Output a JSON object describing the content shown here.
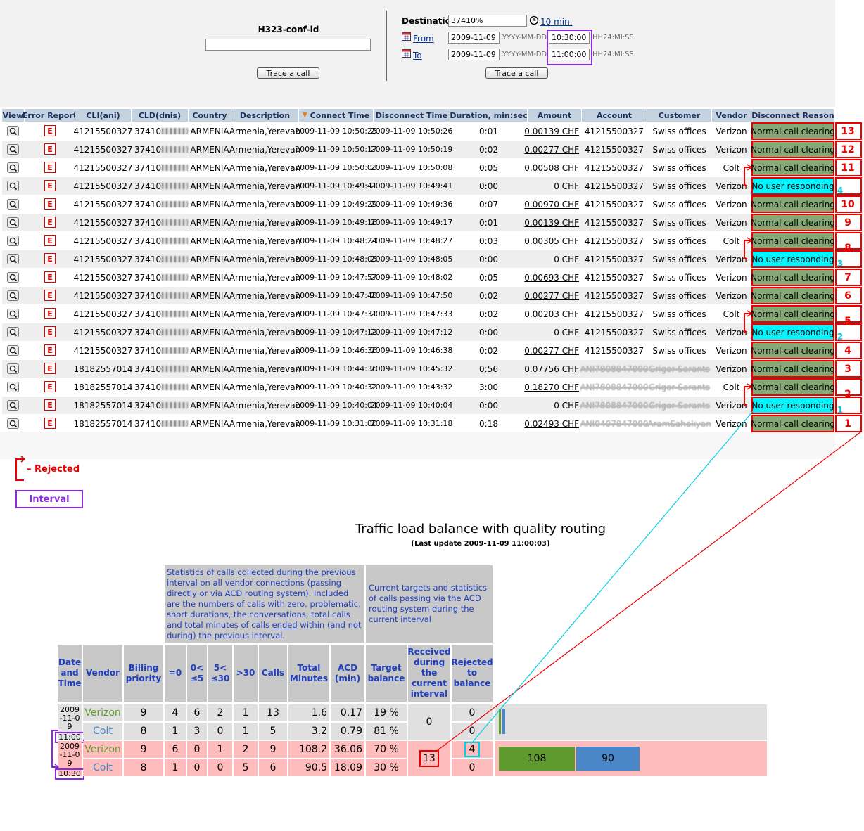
{
  "search": {
    "conf_label": "H323-conf-id",
    "button": "Trace a call",
    "destination_label": "Destination",
    "destination": "37410%",
    "interval_link": "10 min.",
    "from_label": "From",
    "from_date": "2009-11-09",
    "date_format": "YYYY-MM-DD",
    "from_time": "10:30:00",
    "time_format": "HH24:MI:SS",
    "to_label": "To",
    "to_date": "2009-11-09",
    "to_time": "11:00:00",
    "button2": "Trace a call"
  },
  "calls": {
    "headers": [
      "View",
      "Error Report",
      "CLI(ani)",
      "CLD(dnis)",
      "Country",
      "Description",
      "Connect Time",
      "Disconnect Time",
      "Duration, min:sec",
      "Amount",
      "Account",
      "Customer",
      "Vendor",
      "Disconnect Reason"
    ],
    "error_icon": "E",
    "rows": [
      {
        "cli": "41215500327",
        "cld": "37410",
        "country": "ARMENIA",
        "description": "Armenia,Yerevan",
        "connect": "2009-11-09 10:50:25",
        "disconnect": "2009-11-09 10:50:26",
        "duration": "0:01",
        "amount": "0.00139 CHF",
        "account": "41215500327",
        "customer": "Swiss offices",
        "vendor": "Verizon",
        "reason": "Normal call clearing",
        "mark": 13
      },
      {
        "cli": "41215500327",
        "cld": "37410",
        "country": "ARMENIA",
        "description": "Armenia,Yerevan",
        "connect": "2009-11-09 10:50:17",
        "disconnect": "2009-11-09 10:50:19",
        "duration": "0:02",
        "amount": "0.00277 CHF",
        "account": "41215500327",
        "customer": "Swiss offices",
        "vendor": "Verizon",
        "reason": "Normal call clearing",
        "mark": 12
      },
      {
        "cli": "41215500327",
        "cld": "37410",
        "country": "ARMENIA",
        "description": "Armenia,Yerevan",
        "connect": "2009-11-09 10:50:03",
        "disconnect": "2009-11-09 10:50:08",
        "duration": "0:05",
        "amount": "0.00508 CHF",
        "account": "41215500327",
        "customer": "Swiss offices",
        "vendor": "Colt",
        "reason": "Normal call clearing",
        "mark": 11
      },
      {
        "cli": "41215500327",
        "cld": "37410",
        "country": "ARMENIA",
        "description": "Armenia,Yerevan",
        "connect": "2009-11-09 10:49:41",
        "disconnect": "2009-11-09 10:49:41",
        "duration": "0:00",
        "amount": "0 CHF",
        "account": "41215500327",
        "customer": "Swiss offices",
        "vendor": "Verizon",
        "reason": "No user responding",
        "rejected_mark": 4
      },
      {
        "cli": "41215500327",
        "cld": "37410",
        "country": "ARMENIA",
        "description": "Armenia,Yerevan",
        "connect": "2009-11-09 10:49:29",
        "disconnect": "2009-11-09 10:49:36",
        "duration": "0:07",
        "amount": "0.00970 CHF",
        "account": "41215500327",
        "customer": "Swiss offices",
        "vendor": "Verizon",
        "reason": "Normal call clearing",
        "mark": 10
      },
      {
        "cli": "41215500327",
        "cld": "37410",
        "country": "ARMENIA",
        "description": "Armenia,Yerevan",
        "connect": "2009-11-09 10:49:16",
        "disconnect": "2009-11-09 10:49:17",
        "duration": "0:01",
        "amount": "0.00139 CHF",
        "account": "41215500327",
        "customer": "Swiss offices",
        "vendor": "Verizon",
        "reason": "Normal call clearing",
        "mark": 9
      },
      {
        "cli": "41215500327",
        "cld": "37410",
        "country": "ARMENIA",
        "description": "Armenia,Yerevan",
        "connect": "2009-11-09 10:48:24",
        "disconnect": "2009-11-09 10:48:27",
        "duration": "0:03",
        "amount": "0.00305 CHF",
        "account": "41215500327",
        "customer": "Swiss offices",
        "vendor": "Colt",
        "reason": "Normal call clearing",
        "mark": 8
      },
      {
        "cli": "41215500327",
        "cld": "37410",
        "country": "ARMENIA",
        "description": "Armenia,Yerevan",
        "connect": "2009-11-09 10:48:05",
        "disconnect": "2009-11-09 10:48:05",
        "duration": "0:00",
        "amount": "0 CHF",
        "account": "41215500327",
        "customer": "Swiss offices",
        "vendor": "Verizon",
        "reason": "No user responding",
        "rejected_mark": 3
      },
      {
        "cli": "41215500327",
        "cld": "37410",
        "country": "ARMENIA",
        "description": "Armenia,Yerevan",
        "connect": "2009-11-09 10:47:57",
        "disconnect": "2009-11-09 10:48:02",
        "duration": "0:05",
        "amount": "0.00693 CHF",
        "account": "41215500327",
        "customer": "Swiss offices",
        "vendor": "Verizon",
        "reason": "Normal call clearing",
        "mark": 7
      },
      {
        "cli": "41215500327",
        "cld": "37410",
        "country": "ARMENIA",
        "description": "Armenia,Yerevan",
        "connect": "2009-11-09 10:47:48",
        "disconnect": "2009-11-09 10:47:50",
        "duration": "0:02",
        "amount": "0.00277 CHF",
        "account": "41215500327",
        "customer": "Swiss offices",
        "vendor": "Verizon",
        "reason": "Normal call clearing",
        "mark": 6
      },
      {
        "cli": "41215500327",
        "cld": "37410",
        "country": "ARMENIA",
        "description": "Armenia,Yerevan",
        "connect": "2009-11-09 10:47:31",
        "disconnect": "2009-11-09 10:47:33",
        "duration": "0:02",
        "amount": "0.00203 CHF",
        "account": "41215500327",
        "customer": "Swiss offices",
        "vendor": "Colt",
        "reason": "Normal call clearing",
        "mark": 5
      },
      {
        "cli": "41215500327",
        "cld": "37410",
        "country": "ARMENIA",
        "description": "Armenia,Yerevan",
        "connect": "2009-11-09 10:47:12",
        "disconnect": "2009-11-09 10:47:12",
        "duration": "0:00",
        "amount": "0 CHF",
        "account": "41215500327",
        "customer": "Swiss offices",
        "vendor": "Verizon",
        "reason": "No user responding",
        "rejected_mark": 2
      },
      {
        "cli": "41215500327",
        "cld": "37410",
        "country": "ARMENIA",
        "description": "Armenia,Yerevan",
        "connect": "2009-11-09 10:46:36",
        "disconnect": "2009-11-09 10:46:38",
        "duration": "0:02",
        "amount": "0.00277 CHF",
        "account": "41215500327",
        "customer": "Swiss offices",
        "vendor": "Verizon",
        "reason": "Normal call clearing",
        "mark": 4
      },
      {
        "cli": "18182557014",
        "cld": "37410",
        "country": "ARMENIA",
        "description": "Armenia,Yerevan",
        "connect": "2009-11-09 10:44:36",
        "disconnect": "2009-11-09 10:45:32",
        "duration": "0:56",
        "amount": "0.07756 CHF",
        "account": "ANI7808847000",
        "customer": "Grigor Sarants",
        "vendor": "Verizon",
        "reason": "Normal call clearing",
        "mark": 3
      },
      {
        "cli": "18182557014",
        "cld": "37410",
        "country": "ARMENIA",
        "description": "Armenia,Yerevan",
        "connect": "2009-11-09 10:40:32",
        "disconnect": "2009-11-09 10:43:32",
        "duration": "3:00",
        "amount": "0.18270 CHF",
        "account": "ANI7808847000",
        "customer": "Grigor Sarants",
        "vendor": "Colt",
        "reason": "Normal call clearing",
        "mark": 2
      },
      {
        "cli": "18182557014",
        "cld": "37410",
        "country": "ARMENIA",
        "description": "Armenia,Yerevan",
        "connect": "2009-11-09 10:40:04",
        "disconnect": "2009-11-09 10:40:04",
        "duration": "0:00",
        "amount": "0 CHF",
        "account": "ANI7808847000",
        "customer": "Grigor Sarants",
        "vendor": "Verizon",
        "reason": "No user responding",
        "rejected_mark": 1
      },
      {
        "cli": "18182557014",
        "cld": "37410",
        "country": "ARMENIA",
        "description": "Armenia,Yerevan",
        "connect": "2009-11-09 10:31:00",
        "disconnect": "2009-11-09 10:31:18",
        "duration": "0:18",
        "amount": "0.02493 CHF",
        "account": "ANI0407847000",
        "customer": "AramSahakyan",
        "vendor": "Verizon",
        "reason": "Normal call clearing",
        "mark": 1
      }
    ]
  },
  "legend": {
    "rejected": "Rejected",
    "interval": "Interval"
  },
  "balance": {
    "title": "Traffic load balance with quality routing",
    "subtitle": "[Last update 2009-11-09 11:00:03]",
    "desc1_before": "Statistics of calls collected during the previous interval on all vendor connections (passing directly or via ACD routing system). Included are the numbers of calls with zero, problematic, short durations, the conversations, total calls and total minutes of calls ",
    "desc1_underlined": "ended",
    "desc1_after": " within (and not during) the previous interval.",
    "desc2": "Current targets and statistics of calls passing via the ACD routing system during the current interval",
    "headers": [
      "Date and Time",
      "Vendor",
      "Billing priority",
      "=0",
      "0< ≤5",
      "5< ≤30",
      ">30",
      "Calls",
      "Total Minutes",
      "ACD (min)",
      "Target balance",
      "Received during the current interval",
      "Rejected to balance"
    ],
    "groups": [
      {
        "date": "2009-11-09",
        "time": "11:00",
        "received": 0,
        "rows": [
          {
            "vendor": "Verizon",
            "color": "#5f9a2e",
            "priority": 9,
            "zero": 4,
            "le5": 6,
            "le30": 2,
            "gt30": 1,
            "calls": 13,
            "minutes": 1.6,
            "acd": 0.17,
            "target": "19 %",
            "rejected": 0,
            "bar": 3
          },
          {
            "vendor": "Colt",
            "color": "#4a86c8",
            "priority": 8,
            "zero": 1,
            "le5": 3,
            "le30": 0,
            "gt30": 1,
            "calls": 5,
            "minutes": 3.2,
            "acd": 0.79,
            "target": "81 %",
            "rejected": 0,
            "bar": 4
          }
        ]
      },
      {
        "date": "2009-11-09",
        "time": "10:30",
        "received": 13,
        "rows": [
          {
            "vendor": "Verizon",
            "color": "#5f9a2e",
            "priority": 9,
            "zero": 6,
            "le5": 0,
            "le30": 1,
            "gt30": 2,
            "calls": 9,
            "minutes": 108.2,
            "acd": 36.06,
            "target": "70 %",
            "rejected": 4,
            "bar": 108
          },
          {
            "vendor": "Colt",
            "color": "#4a86c8",
            "priority": 8,
            "zero": 1,
            "le5": 0,
            "le30": 0,
            "gt30": 5,
            "calls": 6,
            "minutes": 90.5,
            "acd": 18.09,
            "target": "30 %",
            "rejected": 0,
            "bar": 90
          }
        ]
      }
    ]
  }
}
